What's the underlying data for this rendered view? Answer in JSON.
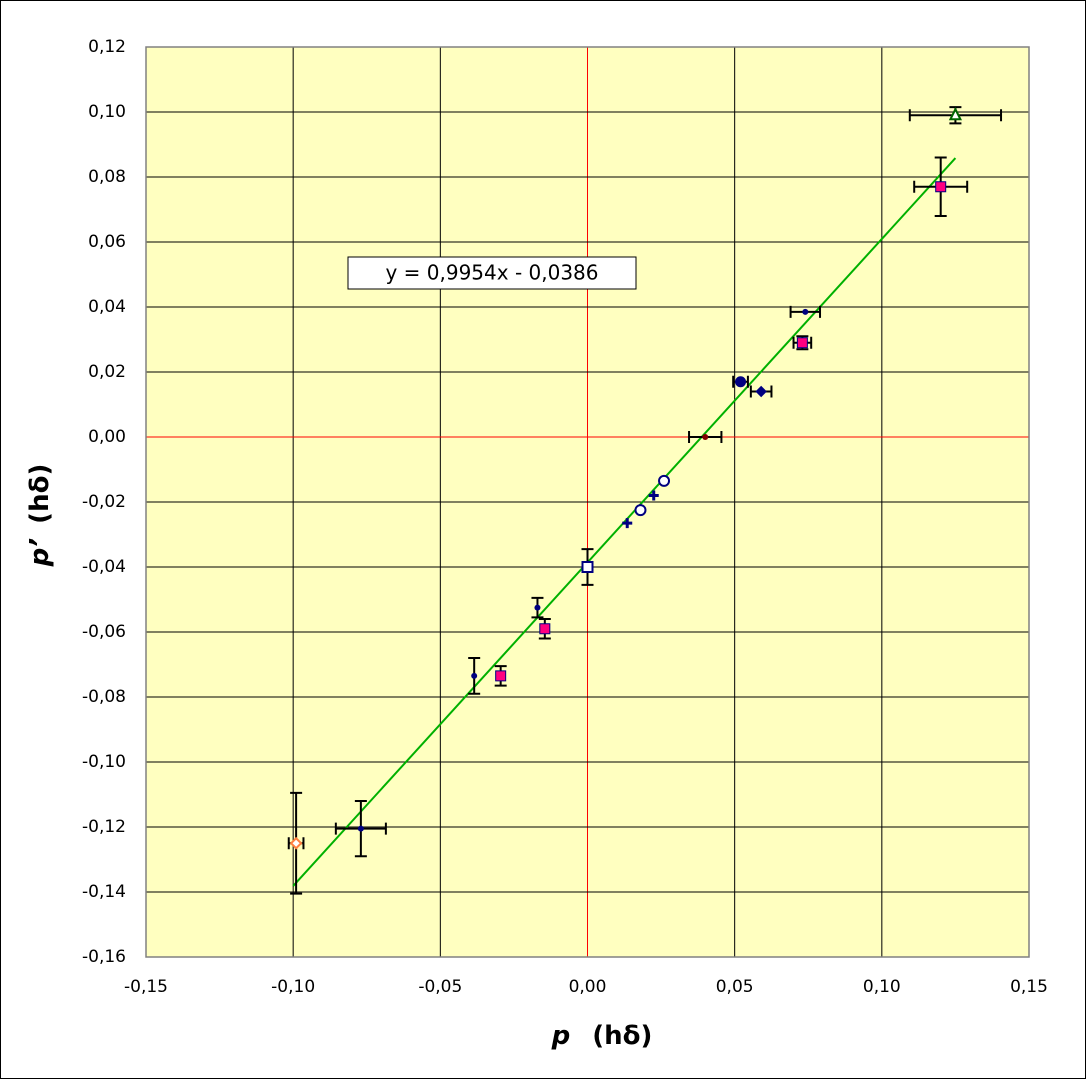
{
  "chart_data": {
    "type": "scatter",
    "x_label": {
      "symbol": "p",
      "unit": "(hδ)"
    },
    "y_label": {
      "symbol": "p’",
      "unit": "(hδ)"
    },
    "xlim": [
      -0.15,
      0.15
    ],
    "xticks": [
      {
        "value": -0.15,
        "label": "-0,15"
      },
      {
        "value": -0.1,
        "label": "-0,10"
      },
      {
        "value": -0.05,
        "label": "-0,05"
      },
      {
        "value": 0,
        "label": "0,00"
      },
      {
        "value": 0.05,
        "label": "0,05"
      },
      {
        "value": 0.1,
        "label": "0,10"
      },
      {
        "value": 0.15,
        "label": "0,15"
      }
    ],
    "ylim": [
      -0.16,
      0.12
    ],
    "yticks": [
      {
        "value": -0.16,
        "label": "-0,16"
      },
      {
        "value": -0.14,
        "label": "-0,14"
      },
      {
        "value": -0.12,
        "label": "-0,12"
      },
      {
        "value": -0.1,
        "label": "-0,10"
      },
      {
        "value": -0.08,
        "label": "-0,08"
      },
      {
        "value": -0.06,
        "label": "-0,06"
      },
      {
        "value": -0.04,
        "label": "-0,04"
      },
      {
        "value": -0.02,
        "label": "-0,02"
      },
      {
        "value": 0,
        "label": "0,00"
      },
      {
        "value": 0.02,
        "label": "0,02"
      },
      {
        "value": 0.04,
        "label": "0,04"
      },
      {
        "value": 0.06,
        "label": "0,06"
      },
      {
        "value": 0.08,
        "label": "0,08"
      },
      {
        "value": 0.1,
        "label": "0,10"
      },
      {
        "value": 0.12,
        "label": "0,12"
      }
    ],
    "grid": true,
    "grid_color": "#000000",
    "zero_line_color": "#ff0000",
    "background": "#ffffc0",
    "points": [
      {
        "x": 0.125,
        "y": 0.099,
        "xerr": 0.0155,
        "yerr": 0.0025,
        "marker": "triangle-open",
        "color": "#006400"
      },
      {
        "x": 0.12,
        "y": 0.077,
        "xerr": 0.009,
        "yerr": 0.009,
        "marker": "square",
        "color": "#ff0080"
      },
      {
        "x": 0.074,
        "y": 0.0385,
        "xerr": 0.005,
        "yerr": null,
        "marker": "dot",
        "color": "#000080"
      },
      {
        "x": 0.073,
        "y": 0.029,
        "xerr": 0.003,
        "yerr": 0.002,
        "marker": "square",
        "color": "#ff0080"
      },
      {
        "x": 0.052,
        "y": 0.017,
        "xerr": 0.0025,
        "yerr": null,
        "marker": "circle",
        "color": "#000080"
      },
      {
        "x": 0.059,
        "y": 0.014,
        "xerr": 0.0035,
        "yerr": null,
        "marker": "diamond",
        "color": "#000080"
      },
      {
        "x": 0.04,
        "y": 0.0,
        "xerr": 0.0055,
        "yerr": null,
        "marker": "dot",
        "color": "#800000"
      },
      {
        "x": 0.026,
        "y": -0.0135,
        "xerr": null,
        "yerr": null,
        "marker": "circle-open",
        "color": "#000080"
      },
      {
        "x": 0.0225,
        "y": -0.018,
        "xerr": null,
        "yerr": null,
        "marker": "plus",
        "color": "#000080"
      },
      {
        "x": 0.018,
        "y": -0.0225,
        "xerr": null,
        "yerr": null,
        "marker": "circle-open",
        "color": "#000080"
      },
      {
        "x": 0.0135,
        "y": -0.0265,
        "xerr": null,
        "yerr": null,
        "marker": "plus",
        "color": "#000080"
      },
      {
        "x": 0.0,
        "y": -0.04,
        "xerr": null,
        "yerr": 0.0055,
        "marker": "square-open",
        "color": "#000080"
      },
      {
        "x": -0.017,
        "y": -0.0525,
        "xerr": null,
        "yerr": 0.003,
        "marker": "dot",
        "color": "#000080"
      },
      {
        "x": -0.0145,
        "y": -0.059,
        "xerr": null,
        "yerr": 0.003,
        "marker": "square",
        "color": "#ff0080"
      },
      {
        "x": -0.0385,
        "y": -0.0735,
        "xerr": null,
        "yerr": 0.0055,
        "marker": "dot",
        "color": "#000080"
      },
      {
        "x": -0.0295,
        "y": -0.0735,
        "xerr": null,
        "yerr": 0.003,
        "marker": "square",
        "color": "#ff0080"
      },
      {
        "x": -0.077,
        "y": -0.1205,
        "xerr": 0.0085,
        "yerr": 0.0085,
        "marker": "dot",
        "color": "#000080"
      },
      {
        "x": -0.099,
        "y": -0.125,
        "xerr": 0.0025,
        "yerr": 0.0155,
        "marker": "diamond-open",
        "color": "#ff8040"
      }
    ],
    "trendline": {
      "label": "y = 0,9954x - 0,0386",
      "slope": 0.9954,
      "intercept": -0.0386,
      "x": [
        -0.1,
        0.125
      ],
      "color": "#00b000"
    }
  }
}
